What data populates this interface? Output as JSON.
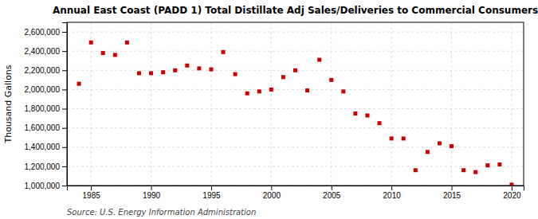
{
  "chart_data": {
    "type": "scatter",
    "title": "Annual East Coast (PADD 1) Total Distillate Adj Sales/Deliveries to Commercial Consumers",
    "y_label": "Thousand Gallons",
    "annotations": [
      "Source: U.S. Energy Information Administration"
    ],
    "x": [
      1984,
      1985,
      1986,
      1987,
      1988,
      1989,
      1990,
      1991,
      1992,
      1993,
      1994,
      1995,
      1996,
      1997,
      1998,
      1999,
      2000,
      2001,
      2002,
      2003,
      2004,
      2005,
      2006,
      2007,
      2008,
      2009,
      2010,
      2011,
      2012,
      2013,
      2014,
      2015,
      2016,
      2017,
      2018,
      2019,
      2020
    ],
    "values": [
      2060000,
      2490000,
      2380000,
      2360000,
      2490000,
      2170000,
      2170000,
      2180000,
      2200000,
      2250000,
      2220000,
      2210000,
      2390000,
      2160000,
      1960000,
      1980000,
      2000000,
      2130000,
      2200000,
      1990000,
      2310000,
      2100000,
      1980000,
      1750000,
      1730000,
      1650000,
      1490000,
      1490000,
      1160000,
      1350000,
      1440000,
      1410000,
      1160000,
      1140000,
      1210000,
      1220000,
      1010000
    ],
    "color": "#cc0000",
    "marker": "square",
    "xlim": [
      1983,
      2021
    ],
    "xticks": [
      1985,
      1990,
      1995,
      2000,
      2005,
      2010,
      2015,
      2020
    ],
    "ylim": [
      1000000,
      2700000
    ],
    "yticks": [
      {
        "value": 1000000,
        "label": "1,000,000"
      },
      {
        "value": 1200000,
        "label": "1,200,000"
      },
      {
        "value": 1400000,
        "label": "1,400,000"
      },
      {
        "value": 1600000,
        "label": "1,600,000"
      },
      {
        "value": 1800000,
        "label": "1,800,000"
      },
      {
        "value": 2000000,
        "label": "2,000,000"
      },
      {
        "value": 2200000,
        "label": "2,200,000"
      },
      {
        "value": 2400000,
        "label": "2,400,000"
      },
      {
        "value": 2600000,
        "label": "2,600,000"
      }
    ],
    "grid": true
  }
}
